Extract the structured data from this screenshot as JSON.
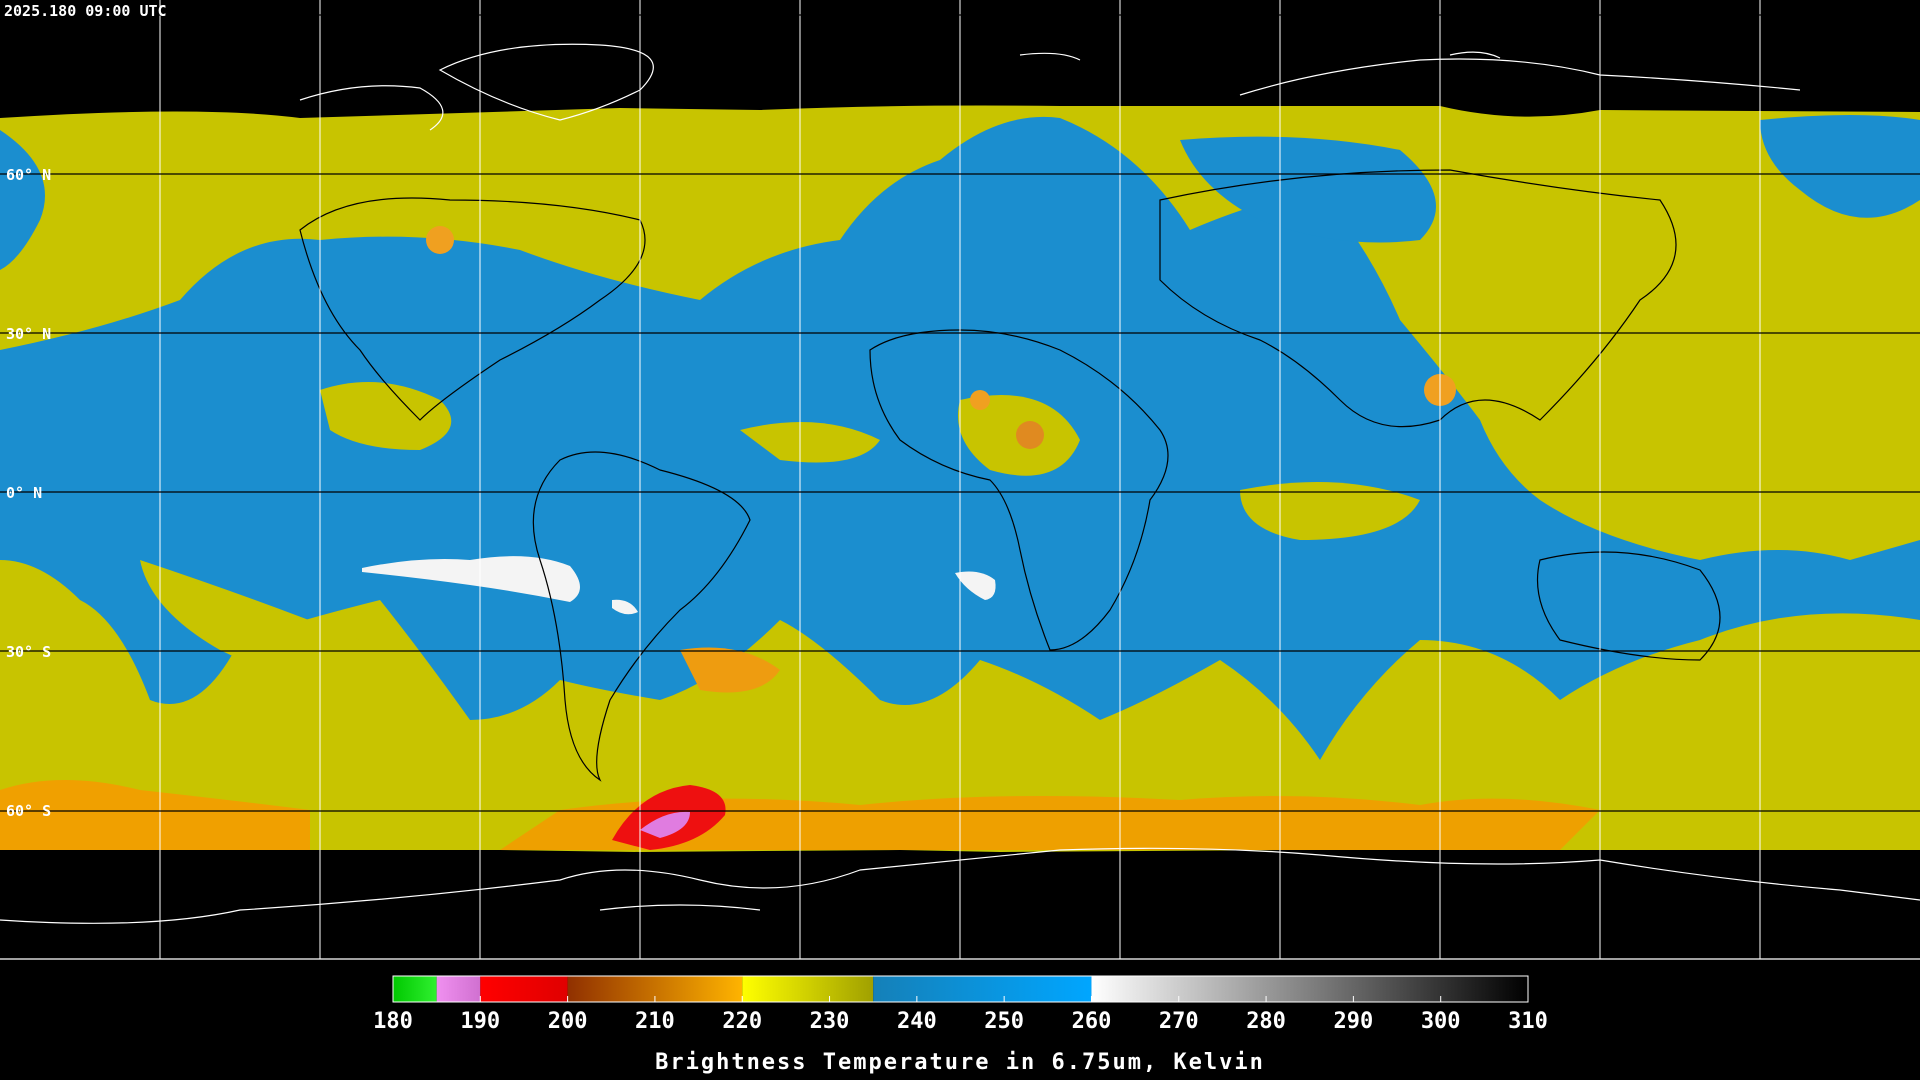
{
  "header": {
    "timestamp": "2025.180 09:00 UTC"
  },
  "map": {
    "lat_labels": [
      "60° N",
      "30° N",
      "0° N",
      "30° S",
      "60° S"
    ]
  },
  "colorbar": {
    "label": "Brightness Temperature in 6.75um, Kelvin",
    "range": [
      180,
      310
    ],
    "ticks": [
      180,
      190,
      200,
      210,
      220,
      230,
      240,
      250,
      260,
      270,
      280,
      290,
      300,
      310
    ],
    "segments": [
      {
        "from": 180,
        "to": 185,
        "colors": [
          "#00c800",
          "#30f030"
        ]
      },
      {
        "from": 185,
        "to": 190,
        "colors": [
          "#f090f0",
          "#d070d0"
        ]
      },
      {
        "from": 190,
        "to": 200,
        "colors": [
          "#ff0000",
          "#e00000"
        ]
      },
      {
        "from": 200,
        "to": 220,
        "colors": [
          "#903000",
          "#ffb400"
        ]
      },
      {
        "from": 220,
        "to": 235,
        "colors": [
          "#ffff00",
          "#a0a000"
        ]
      },
      {
        "from": 235,
        "to": 260,
        "colors": [
          "#1580b8",
          "#00a6ff"
        ]
      },
      {
        "from": 260,
        "to": 310,
        "colors": [
          "#ffffff",
          "#000000"
        ]
      }
    ]
  }
}
